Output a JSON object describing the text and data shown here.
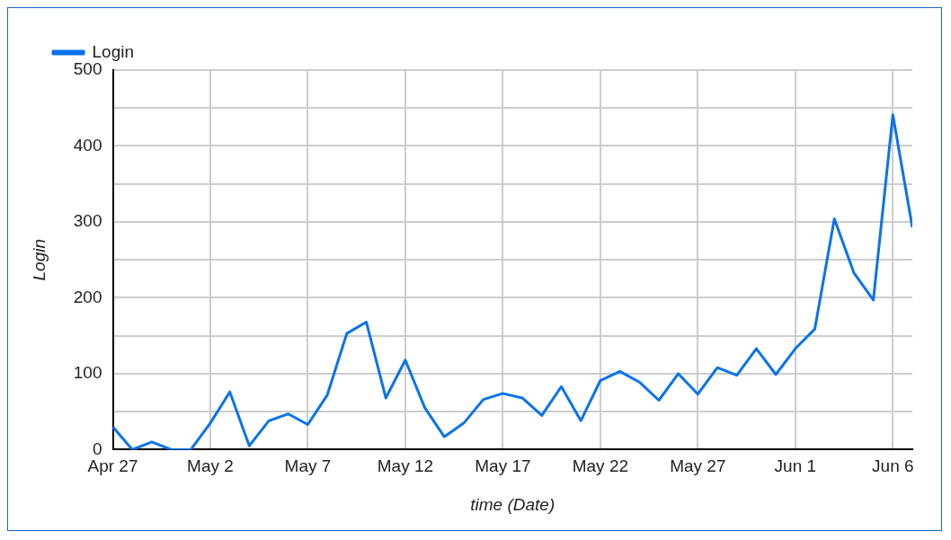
{
  "chart_data": {
    "type": "line",
    "xlabel": "time (Date)",
    "ylabel": "Login",
    "legend": "top left",
    "grid": true,
    "marker": "none",
    "line_style": "solid",
    "xlim": [
      "--04-27",
      "--06-07"
    ],
    "xticks": [
      {
        "value": "--04-27",
        "label": "Apr 27"
      },
      {
        "value": "--05-02",
        "label": "May 2"
      },
      {
        "value": "--05-07",
        "label": "May 7"
      },
      {
        "value": "--05-12",
        "label": "May 12"
      },
      {
        "value": "--05-17",
        "label": "May 17"
      },
      {
        "value": "--05-22",
        "label": "May 22"
      },
      {
        "value": "--05-27",
        "label": "May 27"
      },
      {
        "value": "--06-01",
        "label": "Jun 1"
      },
      {
        "value": "--06-06",
        "label": "Jun 6"
      }
    ],
    "ylim": [
      0,
      500
    ],
    "yticks": [
      0,
      {
        "value": 50,
        "label": null
      },
      100,
      {
        "value": 150,
        "label": null
      },
      200,
      {
        "value": 250,
        "label": null
      },
      300,
      {
        "value": 350,
        "label": null
      },
      400,
      {
        "value": 450,
        "label": null
      },
      500
    ],
    "x": [
      "--04-27",
      "--04-28",
      "--04-29",
      "--04-30",
      "--05-01",
      "--05-02",
      "--05-03",
      "--05-04",
      "--05-05",
      "--05-06",
      "--05-07",
      "--05-08",
      "--05-09",
      "--05-10",
      "--05-11",
      "--05-12",
      "--05-13",
      "--05-14",
      "--05-15",
      "--05-16",
      "--05-17",
      "--05-18",
      "--05-19",
      "--05-20",
      "--05-21",
      "--05-22",
      "--05-23",
      "--05-24",
      "--05-25",
      "--05-26",
      "--05-27",
      "--05-28",
      "--05-29",
      "--05-30",
      "--05-31",
      "--06-01",
      "--06-02",
      "--06-03",
      "--06-04",
      "--06-05",
      "--06-06",
      "--06-07"
    ],
    "series": [
      {
        "name": "Login",
        "color": "#0a73eb",
        "values": [
          30,
          0,
          10,
          0,
          0,
          35,
          76,
          5,
          38,
          47,
          33,
          72,
          153,
          168,
          68,
          118,
          55,
          17,
          35,
          66,
          74,
          68,
          45,
          83,
          38,
          91,
          103,
          89,
          65,
          100,
          73,
          108,
          98,
          133,
          99,
          133,
          159,
          304,
          233,
          197,
          441,
          293
        ]
      }
    ]
  }
}
